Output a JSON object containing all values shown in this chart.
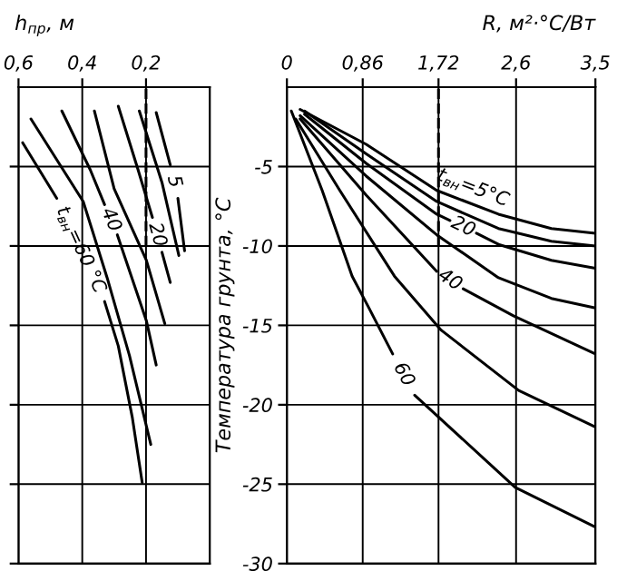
{
  "chart_data": [
    {
      "type": "line",
      "xlabel": "h$_{пр}$, м",
      "xlim": [
        0.6,
        0
      ],
      "xticks": [
        {
          "value": 0.6,
          "label": "0,6"
        },
        {
          "value": 0.4,
          "label": "0,4"
        },
        {
          "value": 0.2,
          "label": "0,2"
        }
      ],
      "ylim": [
        -30,
        0
      ],
      "yticks": [
        -30,
        -25,
        -20,
        -15,
        -10,
        -5
      ],
      "tick_labels": "x",
      "grid": true,
      "line_style": "solid",
      "series": [
        {
          "name": "t$_{вн}$=60 °C",
          "color": "#000000",
          "x": [
            0.587,
            0.48,
            0.4,
            0.33,
            0.287,
            0.243,
            0.212
          ],
          "values": [
            -3.5,
            -7.0,
            null,
            -13.5,
            -16.3,
            -20.8,
            -24.9
          ]
        },
        {
          "color": "#000000",
          "x": [
            0.561,
            0.397,
            0.322,
            0.252,
            0.185
          ],
          "values": [
            -2.0,
            -7.2,
            -12.0,
            -16.9,
            -22.5
          ]
        },
        {
          "name": "40",
          "color": "#000000",
          "x": [
            0.464,
            0.375,
            0.33,
            0.31,
            0.29,
            0.199,
            0.168
          ],
          "values": [
            -1.5,
            -5.2,
            -7.4,
            null,
            -9.3,
            -14.7,
            -17.5
          ]
        },
        {
          "color": "#000000",
          "x": [
            0.362,
            0.3,
            0.199,
            0.141
          ],
          "values": [
            -1.5,
            -6.4,
            -10.9,
            -14.9
          ]
        },
        {
          "name": "20",
          "color": "#000000",
          "x": [
            0.287,
            0.225,
            0.18,
            0.165,
            0.15,
            0.124
          ],
          "values": [
            -1.2,
            -5.2,
            -8.2,
            null,
            -10.4,
            -12.3
          ]
        },
        {
          "color": "#000000",
          "x": [
            0.221,
            0.15,
            0.097
          ],
          "values": [
            -1.5,
            -6.0,
            -10.6
          ]
        },
        {
          "name": "5",
          "color": "#000000",
          "x": [
            0.168,
            0.124,
            0.11,
            0.1,
            0.079
          ],
          "values": [
            -1.6,
            -4.9,
            null,
            -7.0,
            -10.3
          ]
        },
        {
          "color": "#000000",
          "line_style": "dashed",
          "x": [
            0.2,
            0.2
          ],
          "values": [
            -10,
            0
          ]
        }
      ]
    },
    {
      "type": "line",
      "xlabel": "R, м²·°C/Вт",
      "ylabel": "Температура грунта, °C",
      "xlim": [
        0,
        3.5
      ],
      "xticks": [
        0,
        {
          "value": 0.86,
          "label": "0,86"
        },
        {
          "value": 1.72,
          "label": "1,72"
        },
        {
          "value": 2.6,
          "label": "2,6"
        },
        {
          "value": 3.5,
          "label": "3,5"
        }
      ],
      "ylim": [
        -30,
        0
      ],
      "yticks": [
        -30,
        -25,
        -20,
        -15,
        -10,
        -5
      ],
      "grid": true,
      "line_style": "solid",
      "series": [
        {
          "name": "t$_{вн}$=5°C",
          "color": "#000000",
          "x": [
            0.15,
            0.9,
            1.7,
            2.4,
            3.0,
            3.5
          ],
          "values": [
            -1.4,
            -3.6,
            -6.5,
            -8.0,
            -8.9,
            -9.2
          ]
        },
        {
          "color": "#000000",
          "x": [
            0.2,
            0.9,
            1.7,
            2.4,
            3.0,
            3.5
          ],
          "values": [
            -1.5,
            -4.2,
            -7.2,
            -8.9,
            -9.7,
            -10.0
          ]
        },
        {
          "name": "20",
          "color": "#000000",
          "x": [
            0.2,
            0.9,
            1.7,
            1.85,
            2.0,
            2.15,
            2.4,
            3.0,
            3.5
          ],
          "values": [
            -1.7,
            -4.8,
            -8.0,
            -8.4,
            null,
            -9.2,
            -9.9,
            -10.9,
            -11.4
          ]
        },
        {
          "color": "#000000",
          "x": [
            0.15,
            0.9,
            1.7,
            2.4,
            3.0,
            3.5
          ],
          "values": [
            -1.8,
            -5.6,
            -9.3,
            -12.0,
            -13.3,
            -13.9
          ]
        },
        {
          "name": "40",
          "color": "#000000",
          "x": [
            0.15,
            0.9,
            1.7,
            1.85,
            2.0,
            2.57,
            3.5
          ],
          "values": [
            -2.0,
            -6.8,
            -11.6,
            null,
            -12.7,
            -14.4,
            -16.8
          ]
        },
        {
          "color": "#000000",
          "x": [
            0.1,
            0.6,
            1.22,
            1.75,
            2.63,
            3.5
          ],
          "values": [
            -2.0,
            -6.5,
            -11.9,
            -15.3,
            -19.1,
            -21.4
          ]
        },
        {
          "name": "60",
          "color": "#000000",
          "x": [
            0.05,
            0.4,
            0.74,
            0.93,
            1.2,
            1.32,
            1.45,
            2.59,
            3.5
          ],
          "values": [
            -1.5,
            -6.5,
            -11.9,
            -13.9,
            -16.8,
            null,
            -19.4,
            -25.2,
            -27.7
          ]
        },
        {
          "color": "#000000",
          "line_style": "dashed",
          "x": [
            1.72,
            1.72
          ],
          "values": [
            -10,
            0
          ]
        }
      ]
    }
  ]
}
